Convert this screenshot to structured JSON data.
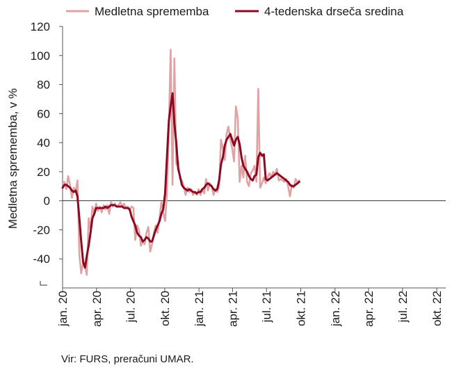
{
  "chart_data": {
    "type": "line",
    "title": "",
    "ylabel": "Medletna sprememba, v %",
    "xlabel": "",
    "ylim": [
      -60,
      120
    ],
    "yticks": [
      120,
      100,
      80,
      60,
      40,
      20,
      0,
      -20,
      -40
    ],
    "xlim": [
      "2020-01-01",
      "2022-10-25"
    ],
    "xticks": [
      {
        "date": "2020-01-01",
        "label": "jan. 20"
      },
      {
        "date": "2020-04-01",
        "label": "apr. 20"
      },
      {
        "date": "2020-07-01",
        "label": "jul. 20"
      },
      {
        "date": "2020-10-01",
        "label": "okt. 20"
      },
      {
        "date": "2021-01-01",
        "label": "jan. 21"
      },
      {
        "date": "2021-04-01",
        "label": "apr. 21"
      },
      {
        "date": "2021-07-01",
        "label": "jul. 21"
      },
      {
        "date": "2021-10-01",
        "label": "okt. 21"
      },
      {
        "date": "2022-01-01",
        "label": "jan. 22"
      },
      {
        "date": "2022-04-01",
        "label": "apr. 22"
      },
      {
        "date": "2022-07-01",
        "label": "jul. 22"
      },
      {
        "date": "2022-10-01",
        "label": "okt. 22"
      }
    ],
    "grid": false,
    "legend_position": "top",
    "series": [
      {
        "name": "Medletna sprememba",
        "color": "#e0a2a2",
        "points": [
          [
            "2020-01-01",
            12
          ],
          [
            "2020-01-06",
            13
          ],
          [
            "2020-01-11",
            8
          ],
          [
            "2020-01-16",
            17
          ],
          [
            "2020-01-21",
            11
          ],
          [
            "2020-01-26",
            2
          ],
          [
            "2020-01-31",
            9
          ],
          [
            "2020-02-05",
            6
          ],
          [
            "2020-02-10",
            14
          ],
          [
            "2020-02-15",
            -37
          ],
          [
            "2020-02-20",
            -50
          ],
          [
            "2020-02-25",
            -42
          ],
          [
            "2020-03-01",
            -45
          ],
          [
            "2020-03-06",
            -51
          ],
          [
            "2020-03-11",
            -12
          ],
          [
            "2020-03-16",
            -20
          ],
          [
            "2020-03-21",
            -4
          ],
          [
            "2020-03-26",
            -9
          ],
          [
            "2020-03-31",
            -2
          ],
          [
            "2020-04-05",
            -7
          ],
          [
            "2020-04-10",
            -4
          ],
          [
            "2020-04-15",
            -8
          ],
          [
            "2020-04-20",
            -3
          ],
          [
            "2020-04-25",
            -6
          ],
          [
            "2020-04-30",
            -3
          ],
          [
            "2020-05-05",
            -9
          ],
          [
            "2020-05-10",
            -1
          ],
          [
            "2020-05-15",
            -4
          ],
          [
            "2020-05-20",
            -2
          ],
          [
            "2020-05-25",
            -4
          ],
          [
            "2020-05-30",
            -3
          ],
          [
            "2020-06-04",
            -1
          ],
          [
            "2020-06-09",
            -4
          ],
          [
            "2020-06-14",
            -2
          ],
          [
            "2020-06-19",
            -5
          ],
          [
            "2020-06-24",
            -4
          ],
          [
            "2020-06-29",
            -6
          ],
          [
            "2020-07-04",
            -4
          ],
          [
            "2020-07-09",
            -5
          ],
          [
            "2020-07-14",
            -27
          ],
          [
            "2020-07-19",
            -17
          ],
          [
            "2020-07-24",
            -20
          ],
          [
            "2020-07-29",
            -31
          ],
          [
            "2020-08-03",
            -28
          ],
          [
            "2020-08-08",
            -30
          ],
          [
            "2020-08-13",
            -22
          ],
          [
            "2020-08-18",
            -18
          ],
          [
            "2020-08-23",
            -35
          ],
          [
            "2020-08-28",
            -30
          ],
          [
            "2020-09-02",
            -22
          ],
          [
            "2020-09-07",
            -17
          ],
          [
            "2020-09-12",
            -22
          ],
          [
            "2020-09-17",
            -12
          ],
          [
            "2020-09-22",
            -1
          ],
          [
            "2020-09-27",
            -8
          ],
          [
            "2020-10-02",
            -14
          ],
          [
            "2020-10-07",
            5
          ],
          [
            "2020-10-12",
            50
          ],
          [
            "2020-10-17",
            104
          ],
          [
            "2020-10-22",
            11
          ],
          [
            "2020-10-27",
            98
          ],
          [
            "2020-11-01",
            25
          ],
          [
            "2020-11-06",
            27
          ],
          [
            "2020-11-11",
            15
          ],
          [
            "2020-11-16",
            14
          ],
          [
            "2020-11-21",
            10
          ],
          [
            "2020-11-26",
            4
          ],
          [
            "2020-12-01",
            9
          ],
          [
            "2020-12-06",
            6
          ],
          [
            "2020-12-11",
            8
          ],
          [
            "2020-12-16",
            4
          ],
          [
            "2020-12-21",
            6
          ],
          [
            "2020-12-26",
            4
          ],
          [
            "2020-12-31",
            8
          ],
          [
            "2021-01-05",
            4
          ],
          [
            "2021-01-10",
            8
          ],
          [
            "2021-01-15",
            5
          ],
          [
            "2021-01-20",
            15
          ],
          [
            "2021-01-25",
            7
          ],
          [
            "2021-01-30",
            12
          ],
          [
            "2021-02-04",
            10
          ],
          [
            "2021-02-09",
            4
          ],
          [
            "2021-02-14",
            8
          ],
          [
            "2021-02-19",
            6
          ],
          [
            "2021-02-24",
            10
          ],
          [
            "2021-03-01",
            42
          ],
          [
            "2021-03-06",
            36
          ],
          [
            "2021-03-11",
            28
          ],
          [
            "2021-03-16",
            46
          ],
          [
            "2021-03-21",
            51
          ],
          [
            "2021-03-26",
            42
          ],
          [
            "2021-03-31",
            36
          ],
          [
            "2021-04-05",
            27
          ],
          [
            "2021-04-10",
            65
          ],
          [
            "2021-04-15",
            57
          ],
          [
            "2021-04-20",
            13
          ],
          [
            "2021-04-25",
            24
          ],
          [
            "2021-04-30",
            16
          ],
          [
            "2021-05-05",
            31
          ],
          [
            "2021-05-10",
            13
          ],
          [
            "2021-05-15",
            10
          ],
          [
            "2021-05-20",
            19
          ],
          [
            "2021-05-25",
            21
          ],
          [
            "2021-05-30",
            24
          ],
          [
            "2021-06-04",
            13
          ],
          [
            "2021-06-09",
            77
          ],
          [
            "2021-06-14",
            9
          ],
          [
            "2021-06-19",
            12
          ],
          [
            "2021-06-24",
            16
          ],
          [
            "2021-06-29",
            12
          ],
          [
            "2021-07-04",
            16
          ],
          [
            "2021-07-09",
            19
          ],
          [
            "2021-07-14",
            16
          ],
          [
            "2021-07-19",
            20
          ],
          [
            "2021-07-24",
            18
          ],
          [
            "2021-07-29",
            22
          ],
          [
            "2021-08-03",
            14
          ],
          [
            "2021-08-08",
            15
          ],
          [
            "2021-08-13",
            14
          ],
          [
            "2021-08-18",
            13
          ],
          [
            "2021-08-23",
            15
          ],
          [
            "2021-08-28",
            10
          ],
          [
            "2021-09-02",
            3
          ],
          [
            "2021-09-07",
            11
          ],
          [
            "2021-09-12",
            9
          ],
          [
            "2021-09-17",
            15
          ],
          [
            "2021-09-22",
            13
          ],
          [
            "2021-09-27",
            14
          ]
        ]
      },
      {
        "name": "4-tedenska drseča sredina",
        "color": "#8b0a22",
        "points": [
          [
            "2020-01-01",
            9
          ],
          [
            "2020-01-06",
            11
          ],
          [
            "2020-01-11",
            11
          ],
          [
            "2020-01-16",
            10
          ],
          [
            "2020-01-21",
            9
          ],
          [
            "2020-01-26",
            7
          ],
          [
            "2020-01-31",
            6
          ],
          [
            "2020-02-05",
            7
          ],
          [
            "2020-02-10",
            3
          ],
          [
            "2020-02-15",
            -12
          ],
          [
            "2020-02-20",
            -28
          ],
          [
            "2020-02-25",
            -42
          ],
          [
            "2020-03-01",
            -46
          ],
          [
            "2020-03-06",
            -38
          ],
          [
            "2020-03-11",
            -31
          ],
          [
            "2020-03-16",
            -22
          ],
          [
            "2020-03-21",
            -12
          ],
          [
            "2020-03-26",
            -9
          ],
          [
            "2020-03-31",
            -5
          ],
          [
            "2020-04-05",
            -5
          ],
          [
            "2020-04-10",
            -5
          ],
          [
            "2020-04-15",
            -5
          ],
          [
            "2020-04-20",
            -5
          ],
          [
            "2020-04-25",
            -4
          ],
          [
            "2020-04-30",
            -5
          ],
          [
            "2020-05-05",
            -4
          ],
          [
            "2020-05-10",
            -3
          ],
          [
            "2020-05-15",
            -3
          ],
          [
            "2020-05-20",
            -3
          ],
          [
            "2020-05-25",
            -4
          ],
          [
            "2020-05-30",
            -4
          ],
          [
            "2020-06-04",
            -4
          ],
          [
            "2020-06-09",
            -4
          ],
          [
            "2020-06-14",
            -5
          ],
          [
            "2020-06-19",
            -5
          ],
          [
            "2020-06-24",
            -5
          ],
          [
            "2020-06-29",
            -6
          ],
          [
            "2020-07-04",
            -11
          ],
          [
            "2020-07-09",
            -14
          ],
          [
            "2020-07-14",
            -17
          ],
          [
            "2020-07-19",
            -22
          ],
          [
            "2020-07-24",
            -24
          ],
          [
            "2020-07-29",
            -25
          ],
          [
            "2020-08-03",
            -28
          ],
          [
            "2020-08-08",
            -27
          ],
          [
            "2020-08-13",
            -25
          ],
          [
            "2020-08-18",
            -26
          ],
          [
            "2020-08-23",
            -28
          ],
          [
            "2020-08-28",
            -28
          ],
          [
            "2020-09-02",
            -24
          ],
          [
            "2020-09-07",
            -20
          ],
          [
            "2020-09-12",
            -17
          ],
          [
            "2020-09-17",
            -14
          ],
          [
            "2020-09-22",
            -9
          ],
          [
            "2020-09-27",
            -6
          ],
          [
            "2020-10-02",
            5
          ],
          [
            "2020-10-07",
            30
          ],
          [
            "2020-10-12",
            55
          ],
          [
            "2020-10-17",
            65
          ],
          [
            "2020-10-22",
            74
          ],
          [
            "2020-10-27",
            53
          ],
          [
            "2020-11-01",
            40
          ],
          [
            "2020-11-06",
            22
          ],
          [
            "2020-11-11",
            17
          ],
          [
            "2020-11-16",
            11
          ],
          [
            "2020-11-21",
            9
          ],
          [
            "2020-11-26",
            8
          ],
          [
            "2020-12-01",
            7
          ],
          [
            "2020-12-06",
            8
          ],
          [
            "2020-12-11",
            7
          ],
          [
            "2020-12-16",
            6
          ],
          [
            "2020-12-21",
            6
          ],
          [
            "2020-12-26",
            5
          ],
          [
            "2020-12-31",
            6
          ],
          [
            "2021-01-05",
            6
          ],
          [
            "2021-01-10",
            8
          ],
          [
            "2021-01-15",
            9
          ],
          [
            "2021-01-20",
            11
          ],
          [
            "2021-01-25",
            12
          ],
          [
            "2021-01-30",
            11
          ],
          [
            "2021-02-04",
            10
          ],
          [
            "2021-02-09",
            8
          ],
          [
            "2021-02-14",
            7
          ],
          [
            "2021-02-19",
            8
          ],
          [
            "2021-02-24",
            14
          ],
          [
            "2021-03-01",
            25
          ],
          [
            "2021-03-06",
            30
          ],
          [
            "2021-03-11",
            38
          ],
          [
            "2021-03-16",
            42
          ],
          [
            "2021-03-21",
            44
          ],
          [
            "2021-03-26",
            46
          ],
          [
            "2021-03-31",
            42
          ],
          [
            "2021-04-05",
            38
          ],
          [
            "2021-04-10",
            42
          ],
          [
            "2021-04-15",
            44
          ],
          [
            "2021-04-20",
            39
          ],
          [
            "2021-04-25",
            30
          ],
          [
            "2021-04-30",
            24
          ],
          [
            "2021-05-05",
            22
          ],
          [
            "2021-05-10",
            20
          ],
          [
            "2021-05-15",
            17
          ],
          [
            "2021-05-20",
            15
          ],
          [
            "2021-05-25",
            14
          ],
          [
            "2021-05-30",
            17
          ],
          [
            "2021-06-04",
            18
          ],
          [
            "2021-06-09",
            30
          ],
          [
            "2021-06-14",
            33
          ],
          [
            "2021-06-19",
            31
          ],
          [
            "2021-06-24",
            32
          ],
          [
            "2021-06-29",
            15
          ],
          [
            "2021-07-04",
            14
          ],
          [
            "2021-07-09",
            15
          ],
          [
            "2021-07-14",
            16
          ],
          [
            "2021-07-19",
            17
          ],
          [
            "2021-07-24",
            18
          ],
          [
            "2021-07-29",
            19
          ],
          [
            "2021-08-03",
            18
          ],
          [
            "2021-08-08",
            17
          ],
          [
            "2021-08-13",
            16
          ],
          [
            "2021-08-18",
            15
          ],
          [
            "2021-08-23",
            14
          ],
          [
            "2021-08-28",
            13
          ],
          [
            "2021-09-02",
            11
          ],
          [
            "2021-09-07",
            10
          ],
          [
            "2021-09-12",
            10
          ],
          [
            "2021-09-17",
            11
          ],
          [
            "2021-09-22",
            12
          ],
          [
            "2021-09-27",
            13
          ]
        ]
      }
    ]
  },
  "source_note": "Vir: FURS, preračuni UMAR."
}
